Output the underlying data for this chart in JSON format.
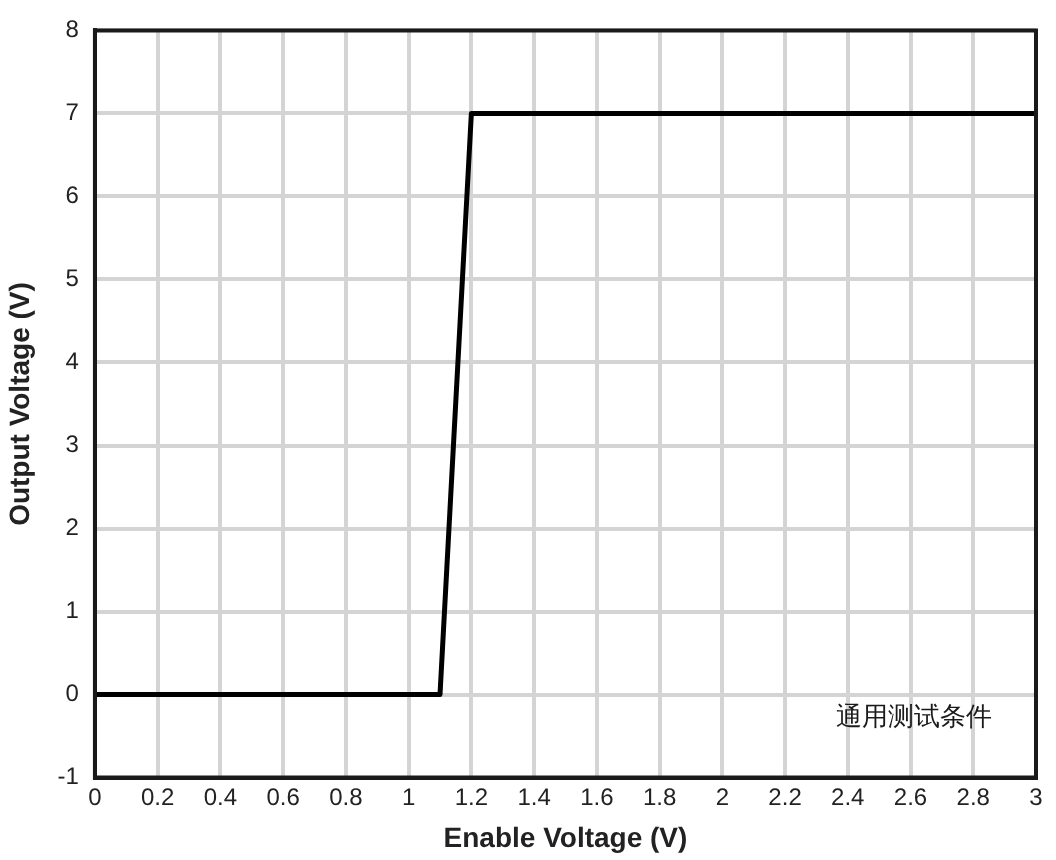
{
  "chart_data": {
    "type": "line",
    "xlabel": "Enable Voltage (V)",
    "ylabel": "Output Voltage (V)",
    "x": [
      0,
      1.1,
      1.2,
      3
    ],
    "series": [
      {
        "color": "#000000",
        "values": [
          0,
          0,
          7,
          7
        ]
      }
    ],
    "xlim": [
      0,
      3
    ],
    "xticks": [
      0,
      0.2,
      0.4,
      0.6,
      0.8,
      1,
      1.2,
      1.4,
      1.6,
      1.8,
      2,
      2.2,
      2.4,
      2.6,
      2.8,
      3
    ],
    "ylim": [
      -1,
      8
    ],
    "yticks": [
      -1,
      0,
      1,
      2,
      3,
      4,
      5,
      6,
      7,
      8
    ],
    "grid": true,
    "legend": false,
    "marker": "none",
    "line_style": "solid",
    "annotations": [
      "通用测试条件"
    ]
  }
}
